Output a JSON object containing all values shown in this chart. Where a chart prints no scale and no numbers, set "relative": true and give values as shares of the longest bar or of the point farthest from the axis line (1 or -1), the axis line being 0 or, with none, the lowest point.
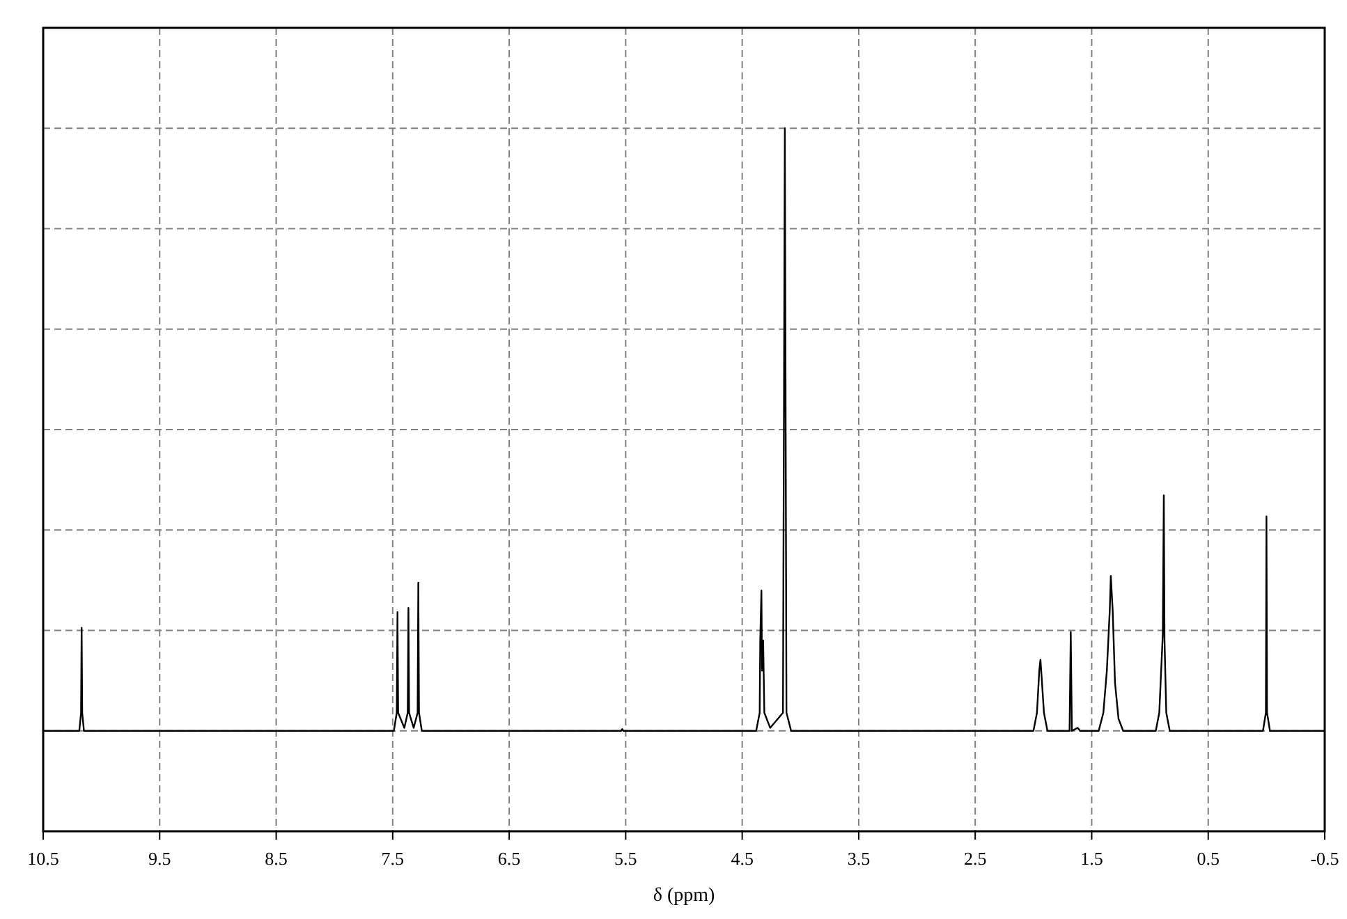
{
  "chart_data": {
    "type": "line",
    "xlabel": "δ (ppm)",
    "relative": true,
    "grid": true,
    "tick_labels": "x",
    "xlim": [
      10.5,
      -0.5
    ],
    "xticks": [
      10.5,
      9.5,
      8.5,
      7.5,
      6.5,
      5.5,
      4.5,
      3.5,
      2.5,
      1.5,
      0.5,
      -0.5
    ],
    "series": [
      {
        "color": "#000000",
        "x": [
          10.5,
          10.19,
          10.175,
          10.17,
          10.165,
          10.15,
          7.49,
          7.465,
          7.459,
          7.453,
          7.4,
          7.371,
          7.365,
          7.359,
          7.32,
          7.286,
          7.28,
          7.274,
          7.25,
          5.54,
          5.53,
          5.52,
          4.38,
          4.35,
          4.345,
          4.335,
          4.33,
          4.32,
          4.31,
          4.26,
          4.15,
          4.134,
          4.12,
          4.08,
          2.0,
          1.97,
          1.95,
          1.94,
          1.93,
          1.91,
          1.88,
          1.69,
          1.68,
          1.67,
          1.62,
          1.6,
          1.44,
          1.4,
          1.37,
          1.345,
          1.336,
          1.32,
          1.3,
          1.27,
          1.23,
          0.95,
          0.92,
          0.89,
          0.881,
          0.875,
          0.86,
          0.83,
          0.03,
          0.005,
          0.0,
          -0.005,
          -0.03,
          -0.5
        ],
        "values": [
          0,
          0,
          0.03,
          0.171,
          0.03,
          0,
          0,
          0.03,
          0.197,
          0.03,
          0.005,
          0.03,
          0.204,
          0.03,
          0.005,
          0.03,
          0.246,
          0.03,
          0,
          0,
          0.003,
          0,
          0,
          0.03,
          0.152,
          0.233,
          0.1,
          0.15,
          0.03,
          0.005,
          0.03,
          1.0,
          0.03,
          0,
          0,
          0.03,
          0.1,
          0.118,
          0.09,
          0.03,
          0,
          0,
          0.164,
          0,
          0.005,
          0,
          0,
          0.03,
          0.1,
          0.2,
          0.257,
          0.2,
          0.08,
          0.02,
          0,
          0,
          0.03,
          0.16,
          0.391,
          0.15,
          0.03,
          0,
          0,
          0.03,
          0.356,
          0.03,
          0,
          0
        ]
      }
    ]
  }
}
